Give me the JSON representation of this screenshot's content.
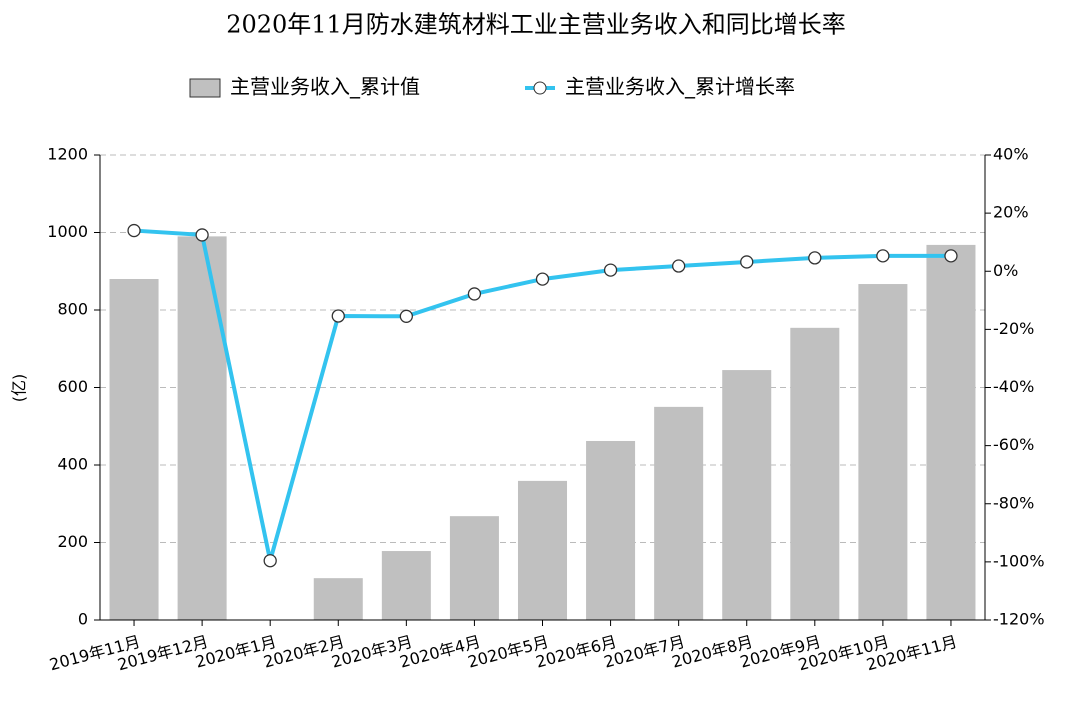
{
  "chart_data": {
    "type": "bar-line",
    "title": "2020年11月防水建筑材料工业主营业务收入和同比增长率",
    "y_label": "(亿)",
    "categories": [
      "2019年11月",
      "2019年12月",
      "2020年1月",
      "2020年2月",
      "2020年3月",
      "2020年4月",
      "2020年5月",
      "2020年6月",
      "2020年7月",
      "2020年8月",
      "2020年9月",
      "2020年10月",
      "2020年11月"
    ],
    "series": [
      {
        "name": "主营业务收入_累计值",
        "type": "bar",
        "color": "#c0c0c0",
        "values": [
          880,
          990,
          null,
          108,
          178,
          268,
          359,
          462,
          550,
          645,
          754,
          867,
          968
        ]
      },
      {
        "name": "主营业务收入_累计增长率",
        "type": "line",
        "axis": "y2",
        "color": "#33c3ef",
        "values": [
          14,
          12.5,
          -99.6,
          -15.4,
          -15.5,
          -7.8,
          -2.7,
          0.4,
          1.8,
          3.2,
          4.6,
          5.3,
          5.3
        ]
      }
    ],
    "ylim": [
      0,
      1200
    ],
    "yticks": [
      0,
      200,
      400,
      600,
      800,
      1000,
      1200
    ],
    "y2lim": [
      -120,
      40
    ],
    "y2ticks": [
      {
        "value": -120,
        "label": "-120%"
      },
      {
        "value": -100,
        "label": "-100%"
      },
      {
        "value": -80,
        "label": "-80%"
      },
      {
        "value": -60,
        "label": "-60%"
      },
      {
        "value": -40,
        "label": "-40%"
      },
      {
        "value": -20,
        "label": "-20%"
      },
      {
        "value": 0,
        "label": "0%"
      },
      {
        "value": 20,
        "label": "20%"
      },
      {
        "value": 40,
        "label": "40%"
      }
    ],
    "grid": true
  }
}
